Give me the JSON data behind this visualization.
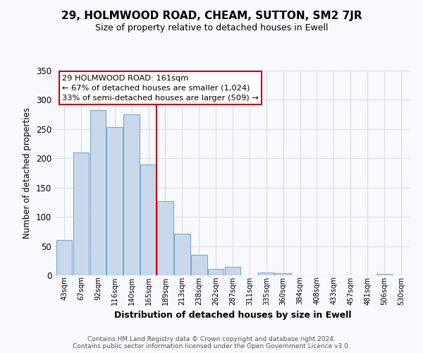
{
  "title": "29, HOLMWOOD ROAD, CHEAM, SUTTON, SM2 7JR",
  "subtitle": "Size of property relative to detached houses in Ewell",
  "xlabel": "Distribution of detached houses by size in Ewell",
  "ylabel": "Number of detached properties",
  "bar_color": "#c8d8ea",
  "bar_edge_color": "#7aaac8",
  "annotation_line1": "29 HOLMWOOD ROAD: 161sqm",
  "annotation_line2": "← 67% of detached houses are smaller (1,024)",
  "annotation_line3": "33% of semi-detached houses are larger (509) →",
  "vline_color": "#cc0000",
  "vline_index": 5,
  "categories": [
    "43sqm",
    "67sqm",
    "92sqm",
    "116sqm",
    "140sqm",
    "165sqm",
    "189sqm",
    "213sqm",
    "238sqm",
    "262sqm",
    "287sqm",
    "311sqm",
    "335sqm",
    "360sqm",
    "384sqm",
    "408sqm",
    "433sqm",
    "457sqm",
    "481sqm",
    "506sqm",
    "530sqm"
  ],
  "values": [
    60,
    210,
    282,
    253,
    275,
    190,
    127,
    71,
    35,
    11,
    14,
    0,
    5,
    4,
    0,
    0,
    0,
    0,
    0,
    2,
    0
  ],
  "ylim": [
    0,
    350
  ],
  "yticks": [
    0,
    50,
    100,
    150,
    200,
    250,
    300,
    350
  ],
  "footer_line1": "Contains HM Land Registry data © Crown copyright and database right 2024.",
  "footer_line2": "Contains public sector information licensed under the Open Government Licence v3.0.",
  "background_color": "#f8f8ff",
  "grid_color": "#d8dce8"
}
